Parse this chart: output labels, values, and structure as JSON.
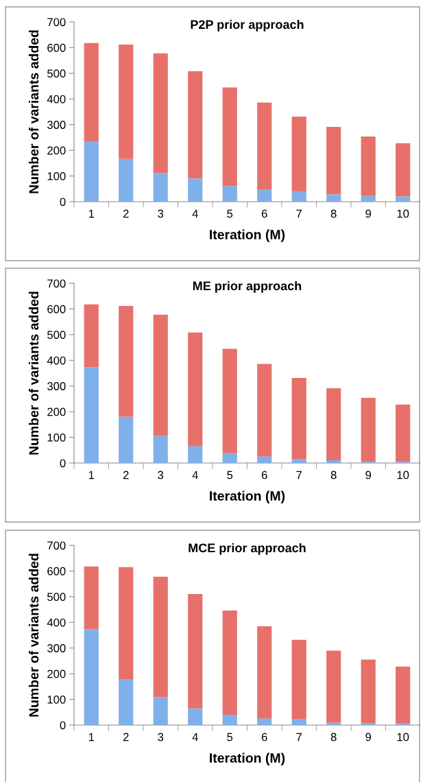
{
  "chart_data": [
    {
      "type": "bar",
      "title": "P2P prior approach",
      "xlabel": "Iteration (M)",
      "ylabel": "Number of variants added",
      "categories": [
        "1",
        "2",
        "3",
        "4",
        "5",
        "6",
        "7",
        "8",
        "9",
        "10"
      ],
      "stacked": true,
      "ylim": [
        0,
        700
      ],
      "yticks": [
        0,
        100,
        200,
        300,
        400,
        500,
        600,
        700
      ],
      "series": [
        {
          "color": "#7fb0ea",
          "values": [
            233,
            166,
            111,
            90,
            60,
            46,
            38,
            28,
            22,
            20
          ]
        },
        {
          "color": "#e8706a",
          "values": [
            385,
            446,
            467,
            418,
            385,
            340,
            293,
            263,
            232,
            208
          ]
        }
      ]
    },
    {
      "type": "bar",
      "title": "ME prior approach",
      "xlabel": "Iteration (M)",
      "ylabel": "Number of variants added",
      "categories": [
        "1",
        "2",
        "3",
        "4",
        "5",
        "6",
        "7",
        "8",
        "9",
        "10"
      ],
      "stacked": true,
      "ylim": [
        0,
        700
      ],
      "yticks": [
        0,
        100,
        200,
        300,
        400,
        500,
        600,
        700
      ],
      "series": [
        {
          "color": "#7fb0ea",
          "values": [
            373,
            180,
            105,
            65,
            38,
            25,
            14,
            11,
            4,
            4
          ]
        },
        {
          "color": "#e8706a",
          "values": [
            245,
            432,
            473,
            443,
            407,
            361,
            317,
            280,
            250,
            224
          ]
        }
      ]
    },
    {
      "type": "bar",
      "title": "MCE prior approach",
      "xlabel": "Iteration (M)",
      "ylabel": "Number of variants added",
      "categories": [
        "1",
        "2",
        "3",
        "4",
        "5",
        "6",
        "7",
        "8",
        "9",
        "10"
      ],
      "stacked": true,
      "ylim": [
        0,
        700
      ],
      "yticks": [
        0,
        100,
        200,
        300,
        400,
        500,
        600,
        700
      ],
      "series": [
        {
          "color": "#7fb0ea",
          "values": [
            373,
            177,
            108,
            65,
            40,
            25,
            22,
            9,
            6,
            6
          ]
        },
        {
          "color": "#e8706a",
          "values": [
            245,
            438,
            470,
            445,
            406,
            360,
            310,
            281,
            249,
            222
          ]
        }
      ]
    }
  ]
}
